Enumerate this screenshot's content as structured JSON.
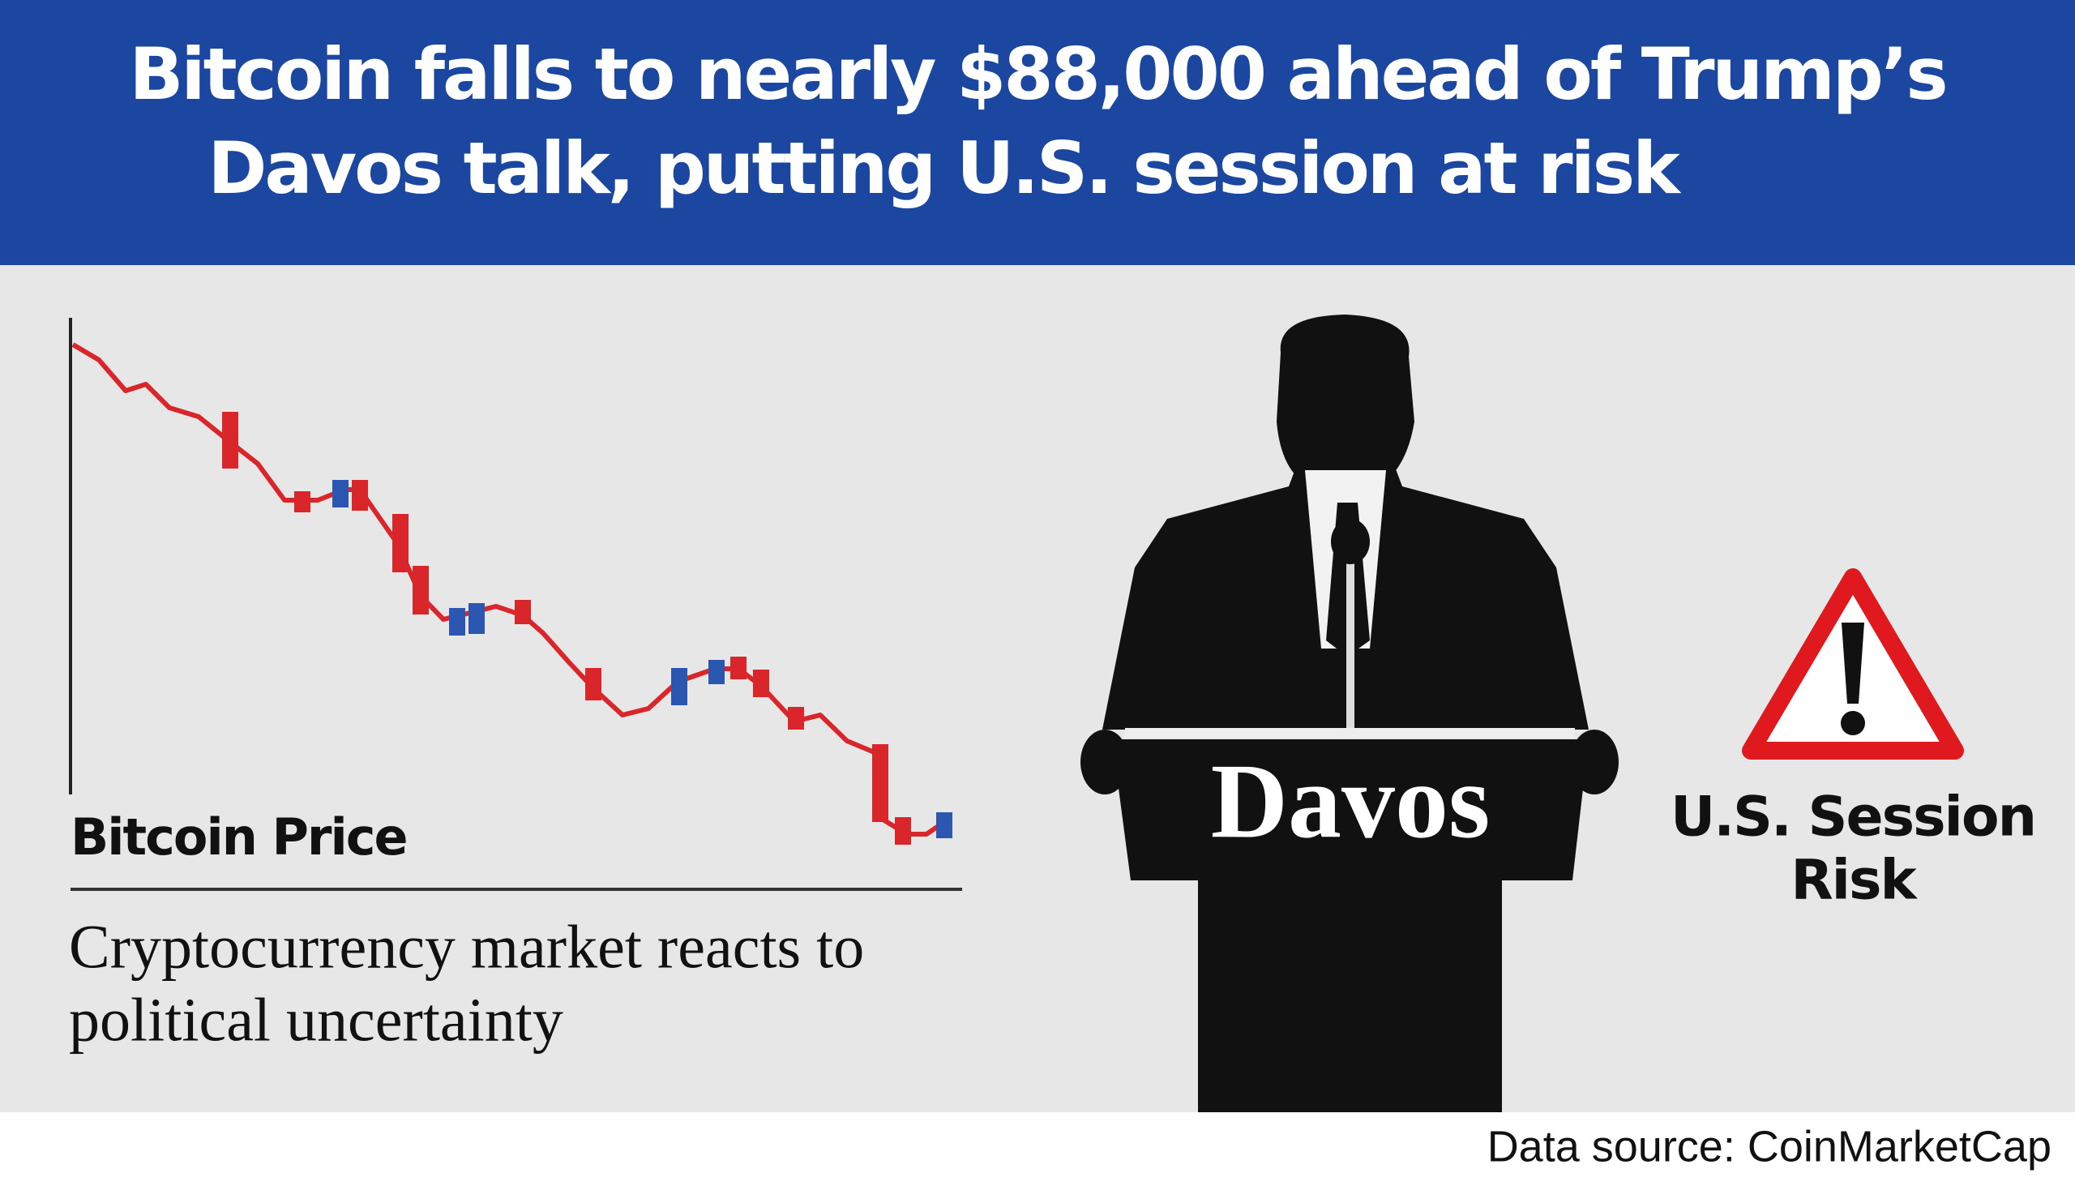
{
  "header": {
    "title_lines": [
      "Bitcoin falls to nearly $88,000 ahead of Trump’s",
      "Davos talk, putting U.S. session at risk"
    ]
  },
  "chart": {
    "label": "Bitcoin Price",
    "caption_lines": [
      "Cryptocurrency market reacts to",
      "political uncertainty"
    ]
  },
  "podium": {
    "label": "Davos"
  },
  "warning": {
    "label_lines": [
      "U.S. Session",
      "Risk"
    ]
  },
  "footer": {
    "source": "Data source: CoinMarketCap"
  }
}
